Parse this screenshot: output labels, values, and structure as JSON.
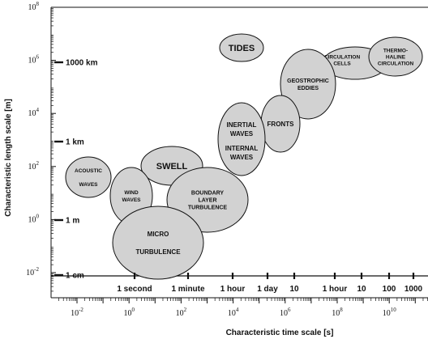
{
  "axes": {
    "x_title": "Characteristic time scale [s]",
    "y_title": "Characteristic length scale [m]",
    "x_ticks": [
      {
        "base": "10",
        "exp": "-2"
      },
      {
        "base": "10",
        "exp": "0"
      },
      {
        "base": "10",
        "exp": "2"
      },
      {
        "base": "10",
        "exp": "4"
      },
      {
        "base": "10",
        "exp": "6"
      },
      {
        "base": "10",
        "exp": "8"
      },
      {
        "base": "10",
        "exp": "10"
      }
    ],
    "y_ticks": [
      {
        "base": "10",
        "exp": "8"
      },
      {
        "base": "10",
        "exp": "6"
      },
      {
        "base": "10",
        "exp": "4"
      },
      {
        "base": "10",
        "exp": "2"
      },
      {
        "base": "10",
        "exp": "0"
      },
      {
        "base": "10",
        "exp": "-2"
      }
    ]
  },
  "length_refs": [
    "1000 km",
    "1 km",
    "1 m",
    "1 cm"
  ],
  "time_refs": [
    "1 second",
    "1 minute",
    "1 hour",
    "1 day",
    "10",
    "1 hour",
    "10",
    "100",
    "1000"
  ],
  "phenomena": [
    {
      "id": "tides",
      "lines": [
        "TIDES"
      ]
    },
    {
      "id": "circulation-cells",
      "lines": [
        "CIRCULATION",
        "CELLS"
      ]
    },
    {
      "id": "thermohaline",
      "lines": [
        "THERMO-",
        "HALINE",
        "CIRCULATION"
      ]
    },
    {
      "id": "geostrophic-eddies",
      "lines": [
        "GEOSTROPHIC",
        "EDDIES"
      ]
    },
    {
      "id": "fronts",
      "lines": [
        "FRONTS"
      ]
    },
    {
      "id": "inertial-internal",
      "lines": [
        "INERTIAL",
        "WAVES",
        "INTERNAL",
        "WAVES"
      ]
    },
    {
      "id": "swell",
      "lines": [
        "SWELL"
      ]
    },
    {
      "id": "acoustic",
      "lines": [
        "ACOUSTIC",
        "WAVES"
      ]
    },
    {
      "id": "wind-waves",
      "lines": [
        "WIND",
        "WAVES"
      ]
    },
    {
      "id": "boundary-layer",
      "lines": [
        "BOUNDARY",
        "LAYER",
        "TURBULENCE"
      ]
    },
    {
      "id": "micro-turbulence",
      "lines": [
        "MICRO",
        "TURBULENCE"
      ]
    }
  ],
  "colors": {
    "bubble_fill": "#d2d2d2",
    "stroke": "#111111"
  }
}
